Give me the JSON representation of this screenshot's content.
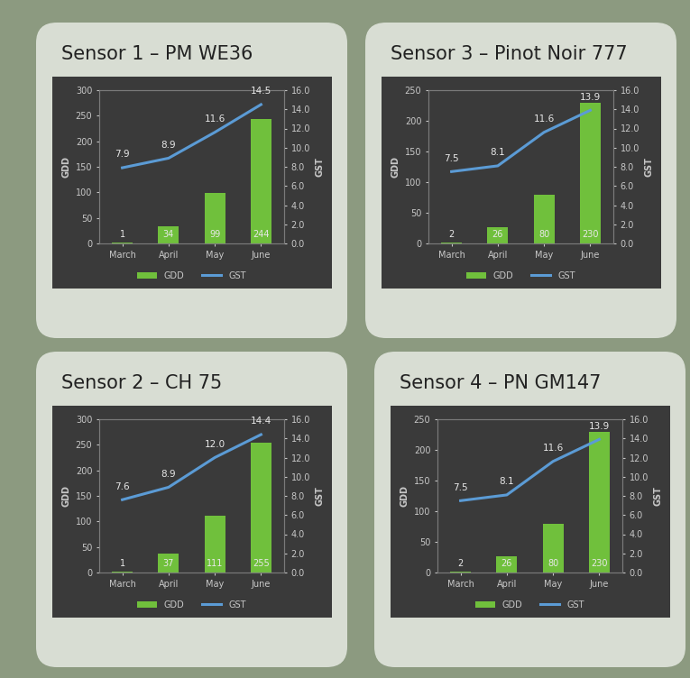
{
  "chart_data": [
    {
      "type": "bar",
      "title": "Sensor 1 – PM WE36",
      "categories": [
        "March",
        "April",
        "May",
        "June"
      ],
      "series": [
        {
          "name": "GDD",
          "type": "bar",
          "color": "#70c03c",
          "values": [
            1,
            34,
            99,
            244
          ]
        },
        {
          "name": "GST",
          "type": "line",
          "axis": "y2",
          "color": "#5b9bd5",
          "values": [
            7.9,
            8.9,
            11.6,
            14.5
          ]
        }
      ],
      "y_label": "GDD",
      "y2_label": "GST",
      "ylim": [
        0,
        300
      ],
      "yticks": [
        0,
        50,
        100,
        150,
        200,
        250,
        300
      ],
      "y2lim": [
        0,
        16
      ],
      "y2ticks": [
        {
          "value": 0,
          "label": "0.0"
        },
        {
          "value": 2,
          "label": "2.0"
        },
        {
          "value": 4,
          "label": "4.0"
        },
        {
          "value": 6,
          "label": "6.0"
        },
        {
          "value": 8,
          "label": "8.0"
        },
        {
          "value": 10,
          "label": "10.0"
        },
        {
          "value": 12,
          "label": "12.0"
        },
        {
          "value": 14,
          "label": "14.0"
        },
        {
          "value": 16,
          "label": "16.0"
        }
      ],
      "legend": "lower center",
      "data_labels": true
    },
    {
      "type": "bar",
      "title": "Sensor 3 – Pinot Noir 777",
      "categories": [
        "March",
        "April",
        "May",
        "June"
      ],
      "series": [
        {
          "name": "GDD",
          "type": "bar",
          "color": "#70c03c",
          "values": [
            2,
            26,
            80,
            230
          ]
        },
        {
          "name": "GST",
          "type": "line",
          "axis": "y2",
          "color": "#5b9bd5",
          "values": [
            7.5,
            8.1,
            11.6,
            13.9
          ]
        }
      ],
      "y_label": "GDD",
      "y2_label": "GST",
      "ylim": [
        0,
        250
      ],
      "yticks": [
        0,
        50,
        100,
        150,
        200,
        250
      ],
      "y2lim": [
        0,
        16
      ],
      "y2ticks": [
        {
          "value": 0,
          "label": "0.0"
        },
        {
          "value": 2,
          "label": "2.0"
        },
        {
          "value": 4,
          "label": "4.0"
        },
        {
          "value": 6,
          "label": "6.0"
        },
        {
          "value": 8,
          "label": "8.0"
        },
        {
          "value": 10,
          "label": "10.0"
        },
        {
          "value": 12,
          "label": "12.0"
        },
        {
          "value": 14,
          "label": "14.0"
        },
        {
          "value": 16,
          "label": "16.0"
        }
      ],
      "legend": "lower center",
      "data_labels": true
    },
    {
      "type": "bar",
      "title": "Sensor 2 – CH 75",
      "categories": [
        "March",
        "April",
        "May",
        "June"
      ],
      "series": [
        {
          "name": "GDD",
          "type": "bar",
          "color": "#70c03c",
          "values": [
            1,
            37,
            111,
            255
          ]
        },
        {
          "name": "GST",
          "type": "line",
          "axis": "y2",
          "color": "#5b9bd5",
          "values": [
            7.6,
            8.9,
            12.0,
            14.4
          ]
        }
      ],
      "y_label": "GDD",
      "y2_label": "GST",
      "ylim": [
        0,
        300
      ],
      "yticks": [
        0,
        50,
        100,
        150,
        200,
        250,
        300
      ],
      "y2lim": [
        0,
        16
      ],
      "y2ticks": [
        {
          "value": 0,
          "label": "0.0"
        },
        {
          "value": 2,
          "label": "2.0"
        },
        {
          "value": 4,
          "label": "4.0"
        },
        {
          "value": 6,
          "label": "6.0"
        },
        {
          "value": 8,
          "label": "8.0"
        },
        {
          "value": 10,
          "label": "10.0"
        },
        {
          "value": 12,
          "label": "12.0"
        },
        {
          "value": 14,
          "label": "14.0"
        },
        {
          "value": 16,
          "label": "16.0"
        }
      ],
      "legend": "lower center",
      "data_labels": true
    },
    {
      "type": "bar",
      "title": "Sensor 4 – PN GM147",
      "categories": [
        "March",
        "April",
        "May",
        "June"
      ],
      "series": [
        {
          "name": "GDD",
          "type": "bar",
          "color": "#70c03c",
          "values": [
            2,
            26,
            80,
            230
          ]
        },
        {
          "name": "GST",
          "type": "line",
          "axis": "y2",
          "color": "#5b9bd5",
          "values": [
            7.5,
            8.1,
            11.6,
            13.9
          ]
        }
      ],
      "y_label": "GDD",
      "y2_label": "GST",
      "ylim": [
        0,
        250
      ],
      "yticks": [
        0,
        50,
        100,
        150,
        200,
        250
      ],
      "y2lim": [
        0,
        16
      ],
      "y2ticks": [
        {
          "value": 0,
          "label": "0.0"
        },
        {
          "value": 2,
          "label": "2.0"
        },
        {
          "value": 4,
          "label": "4.0"
        },
        {
          "value": 6,
          "label": "6.0"
        },
        {
          "value": 8,
          "label": "8.0"
        },
        {
          "value": 10,
          "label": "10.0"
        },
        {
          "value": 12,
          "label": "12.0"
        },
        {
          "value": 14,
          "label": "14.0"
        },
        {
          "value": 16,
          "label": "16.0"
        }
      ],
      "legend": "lower center",
      "data_labels": true
    }
  ]
}
